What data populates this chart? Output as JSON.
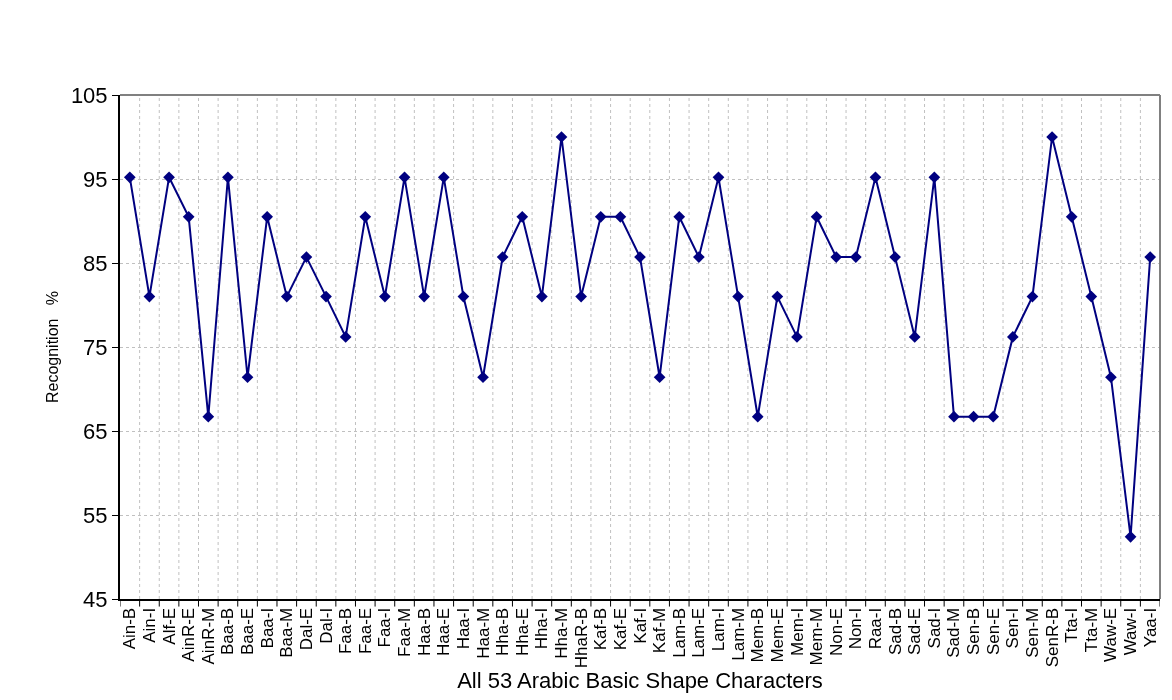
{
  "chart_data": {
    "type": "line",
    "xlabel": "All 53 Arabic Basic Shape Characters",
    "ylabel": "Recognition   %",
    "categories": [
      "Ain-B",
      "Ain-I",
      "Alf-E",
      "AinR-E",
      "AinR-M",
      "Baa-B",
      "Baa-E",
      "Baa-I",
      "Baa-M",
      "Dal-E",
      "Dal-I",
      "Faa-B",
      "Faa-E",
      "Faa-I",
      "Faa-M",
      "Haa-B",
      "Haa-E",
      "Haa-I",
      "Haa-M",
      "Hha-B",
      "Hha-E",
      "Hha-I",
      "Hha-M",
      "HhaR-B",
      "Kaf-B",
      "Kaf-E",
      "Kaf-I",
      "Kaf-M",
      "Lam-B",
      "Lam-E",
      "Lam-I",
      "Lam-M",
      "Mem-B",
      "Mem-E",
      "Mem-I",
      "Mem-M",
      "Non-E",
      "Non-I",
      "Raa-I",
      "Sad-B",
      "Sad-E",
      "Sad-I",
      "Sad-M",
      "Sen-B",
      "Sen-E",
      "Sen-I",
      "Sen-M",
      "SenR-B",
      "Tta-I",
      "Tta-M",
      "Waw-E",
      "Waw-I",
      "Yaa-I"
    ],
    "series": [
      {
        "color": "#000080",
        "values": [
          95.2,
          81.0,
          95.2,
          90.5,
          66.7,
          95.2,
          71.4,
          90.5,
          81.0,
          85.7,
          81.0,
          76.2,
          90.5,
          81.0,
          95.2,
          81.0,
          95.2,
          81.0,
          71.4,
          85.7,
          90.5,
          81.0,
          100,
          81.0,
          90.5,
          90.5,
          85.7,
          71.4,
          90.5,
          85.7,
          95.2,
          81.0,
          66.7,
          81.0,
          76.2,
          90.5,
          85.7,
          85.7,
          95.2,
          85.7,
          76.2,
          95.2,
          66.7,
          66.7,
          66.7,
          76.2,
          81.0,
          100,
          90.5,
          81.0,
          71.4,
          52.4,
          85.7
        ]
      }
    ],
    "ylim": [
      45,
      105
    ],
    "yticks": [
      45,
      55,
      65,
      75,
      85,
      95,
      105
    ],
    "grid": true,
    "marker": "diamond",
    "line_style": "solid"
  }
}
